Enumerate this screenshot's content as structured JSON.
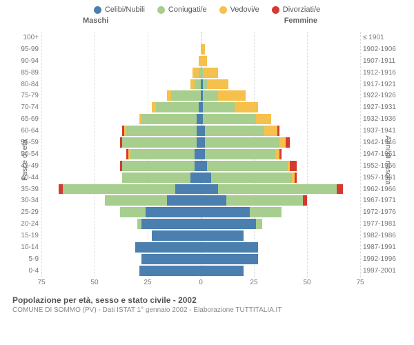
{
  "type": "population-pyramid",
  "legend": [
    {
      "label": "Celibi/Nubili",
      "color": "#4a7fb0"
    },
    {
      "label": "Coniugati/e",
      "color": "#a7ce8f"
    },
    {
      "label": "Vedovi/e",
      "color": "#f6c04d"
    },
    {
      "label": "Divorziati/e",
      "color": "#d43a2f"
    }
  ],
  "header": {
    "maschi": "Maschi",
    "femmine": "Femmine"
  },
  "axis": {
    "left_title": "Fasce di età",
    "right_title": "Anni di nascita",
    "x_max": 75,
    "x_ticks": [
      75,
      50,
      25,
      0,
      25,
      50,
      75
    ]
  },
  "rows": [
    {
      "age": "100+",
      "birth": "≤ 1901",
      "m": [
        0,
        0,
        0,
        0
      ],
      "f": [
        0,
        0,
        0,
        0
      ]
    },
    {
      "age": "95-99",
      "birth": "1902-1906",
      "m": [
        0,
        0,
        0,
        0
      ],
      "f": [
        0,
        0,
        2,
        0
      ]
    },
    {
      "age": "90-94",
      "birth": "1907-1911",
      "m": [
        0,
        0,
        1,
        0
      ],
      "f": [
        0,
        0,
        3,
        0
      ]
    },
    {
      "age": "85-89",
      "birth": "1912-1916",
      "m": [
        0,
        1,
        3,
        0
      ],
      "f": [
        0,
        1,
        7,
        0
      ]
    },
    {
      "age": "80-84",
      "birth": "1917-1921",
      "m": [
        0,
        3,
        2,
        0
      ],
      "f": [
        1,
        2,
        10,
        0
      ]
    },
    {
      "age": "75-79",
      "birth": "1922-1926",
      "m": [
        0,
        14,
        2,
        0
      ],
      "f": [
        1,
        7,
        13,
        0
      ]
    },
    {
      "age": "70-74",
      "birth": "1927-1931",
      "m": [
        1,
        20,
        2,
        0
      ],
      "f": [
        1,
        15,
        11,
        0
      ]
    },
    {
      "age": "65-69",
      "birth": "1932-1936",
      "m": [
        2,
        26,
        1,
        0
      ],
      "f": [
        1,
        25,
        7,
        0
      ]
    },
    {
      "age": "60-64",
      "birth": "1937-1941",
      "m": [
        2,
        33,
        1,
        1
      ],
      "f": [
        2,
        28,
        6,
        1
      ]
    },
    {
      "age": "55-59",
      "birth": "1942-1946",
      "m": [
        2,
        35,
        0,
        1
      ],
      "f": [
        2,
        35,
        3,
        2
      ]
    },
    {
      "age": "50-54",
      "birth": "1947-1951",
      "m": [
        3,
        30,
        1,
        1
      ],
      "f": [
        2,
        33,
        2,
        1
      ]
    },
    {
      "age": "45-49",
      "birth": "1952-1956",
      "m": [
        3,
        34,
        0,
        1
      ],
      "f": [
        3,
        38,
        1,
        3
      ]
    },
    {
      "age": "40-44",
      "birth": "1957-1961",
      "m": [
        5,
        32,
        0,
        0
      ],
      "f": [
        5,
        38,
        1,
        1
      ]
    },
    {
      "age": "35-39",
      "birth": "1962-1966",
      "m": [
        12,
        53,
        0,
        2
      ],
      "f": [
        8,
        56,
        0,
        3
      ]
    },
    {
      "age": "30-34",
      "birth": "1967-1971",
      "m": [
        16,
        29,
        0,
        0
      ],
      "f": [
        12,
        36,
        0,
        2
      ]
    },
    {
      "age": "25-29",
      "birth": "1972-1976",
      "m": [
        26,
        12,
        0,
        0
      ],
      "f": [
        23,
        15,
        0,
        0
      ]
    },
    {
      "age": "20-24",
      "birth": "1977-1981",
      "m": [
        28,
        2,
        0,
        0
      ],
      "f": [
        26,
        3,
        0,
        0
      ]
    },
    {
      "age": "15-19",
      "birth": "1982-1986",
      "m": [
        23,
        0,
        0,
        0
      ],
      "f": [
        20,
        0,
        0,
        0
      ]
    },
    {
      "age": "10-14",
      "birth": "1987-1991",
      "m": [
        31,
        0,
        0,
        0
      ],
      "f": [
        27,
        0,
        0,
        0
      ]
    },
    {
      "age": "5-9",
      "birth": "1992-1996",
      "m": [
        28,
        0,
        0,
        0
      ],
      "f": [
        27,
        0,
        0,
        0
      ]
    },
    {
      "age": "0-4",
      "birth": "1997-2001",
      "m": [
        29,
        0,
        0,
        0
      ],
      "f": [
        20,
        0,
        0,
        0
      ]
    }
  ],
  "footer": {
    "title": "Popolazione per età, sesso e stato civile - 2002",
    "sub": "COMUNE DI SOMMO (PV) - Dati ISTAT 1° gennaio 2002 - Elaborazione TUTTITALIA.IT"
  },
  "style": {
    "background": "#ffffff",
    "grid_color": "#dddddd",
    "center_line_color": "#bbbbbb",
    "label_color": "#777777",
    "font_size_labels": 10,
    "font_size_legend": 11
  }
}
